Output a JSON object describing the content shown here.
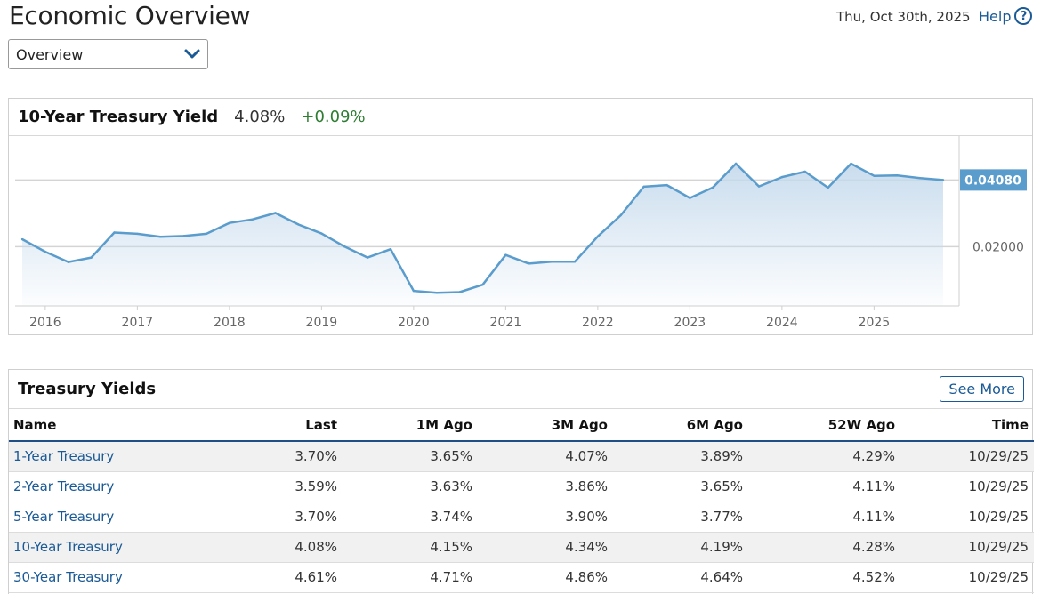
{
  "header": {
    "title": "Economic Overview",
    "date": "Thu, Oct 30th, 2025",
    "help_label": "Help",
    "help_icon": "?"
  },
  "view_select": {
    "value": "Overview"
  },
  "chart_panel": {
    "title": "10-Year Treasury Yield",
    "value": "4.08%",
    "change": "+0.09%",
    "change_color": "#2e7d32"
  },
  "chart_data": {
    "type": "area",
    "title": "10-Year Treasury Yield",
    "x": [
      2015.75,
      2016.0,
      2016.25,
      2016.5,
      2016.75,
      2017.0,
      2017.25,
      2017.5,
      2017.75,
      2018.0,
      2018.25,
      2018.5,
      2018.75,
      2019.0,
      2019.25,
      2019.5,
      2019.75,
      2020.0,
      2020.25,
      2020.5,
      2020.75,
      2021.0,
      2021.25,
      2021.5,
      2021.75,
      2022.0,
      2022.25,
      2022.5,
      2022.75,
      2023.0,
      2023.25,
      2023.5,
      2023.75,
      2024.0,
      2024.25,
      2024.5,
      2024.75,
      2025.0,
      2025.25,
      2025.5,
      2025.75
    ],
    "values": [
      0.0223,
      0.0184,
      0.0152,
      0.0166,
      0.0244,
      0.024,
      0.0231,
      0.0233,
      0.024,
      0.0274,
      0.0285,
      0.0305,
      0.0269,
      0.0241,
      0.02,
      0.0166,
      0.0192,
      0.0062,
      0.0056,
      0.0058,
      0.0081,
      0.0174,
      0.0147,
      0.0153,
      0.0153,
      0.0232,
      0.0298,
      0.0387,
      0.0392,
      0.0352,
      0.0385,
      0.0459,
      0.0388,
      0.0417,
      0.0434,
      0.0384,
      0.0459,
      0.0421,
      0.0422,
      0.0414,
      0.0408
    ],
    "ylim": [
      0.0015,
      0.0545
    ],
    "y_gridlines": [
      0.02,
      0.0408
    ],
    "y_tick_labels": [
      "0.02000"
    ],
    "last_value_label": "0.04080",
    "x_tick_labels": [
      "2016",
      "2017",
      "2018",
      "2019",
      "2020",
      "2021",
      "2022",
      "2023",
      "2024",
      "2025"
    ],
    "line_color": "#5a9ccc",
    "label_bg": "#5a9ccc"
  },
  "treasury_table": {
    "title": "Treasury Yields",
    "see_more_label": "See More",
    "columns": [
      "Name",
      "Last",
      "1M Ago",
      "3M Ago",
      "6M Ago",
      "52W Ago",
      "Time"
    ],
    "rows": [
      [
        "1-Year Treasury",
        "3.70%",
        "3.65%",
        "4.07%",
        "3.89%",
        "4.29%",
        "10/29/25"
      ],
      [
        "2-Year Treasury",
        "3.59%",
        "3.63%",
        "3.86%",
        "3.65%",
        "4.11%",
        "10/29/25"
      ],
      [
        "5-Year Treasury",
        "3.70%",
        "3.74%",
        "3.90%",
        "3.77%",
        "4.11%",
        "10/29/25"
      ],
      [
        "10-Year Treasury",
        "4.08%",
        "4.15%",
        "4.34%",
        "4.19%",
        "4.28%",
        "10/29/25"
      ],
      [
        "30-Year Treasury",
        "4.61%",
        "4.71%",
        "4.86%",
        "4.64%",
        "4.52%",
        "10/29/25"
      ]
    ]
  }
}
